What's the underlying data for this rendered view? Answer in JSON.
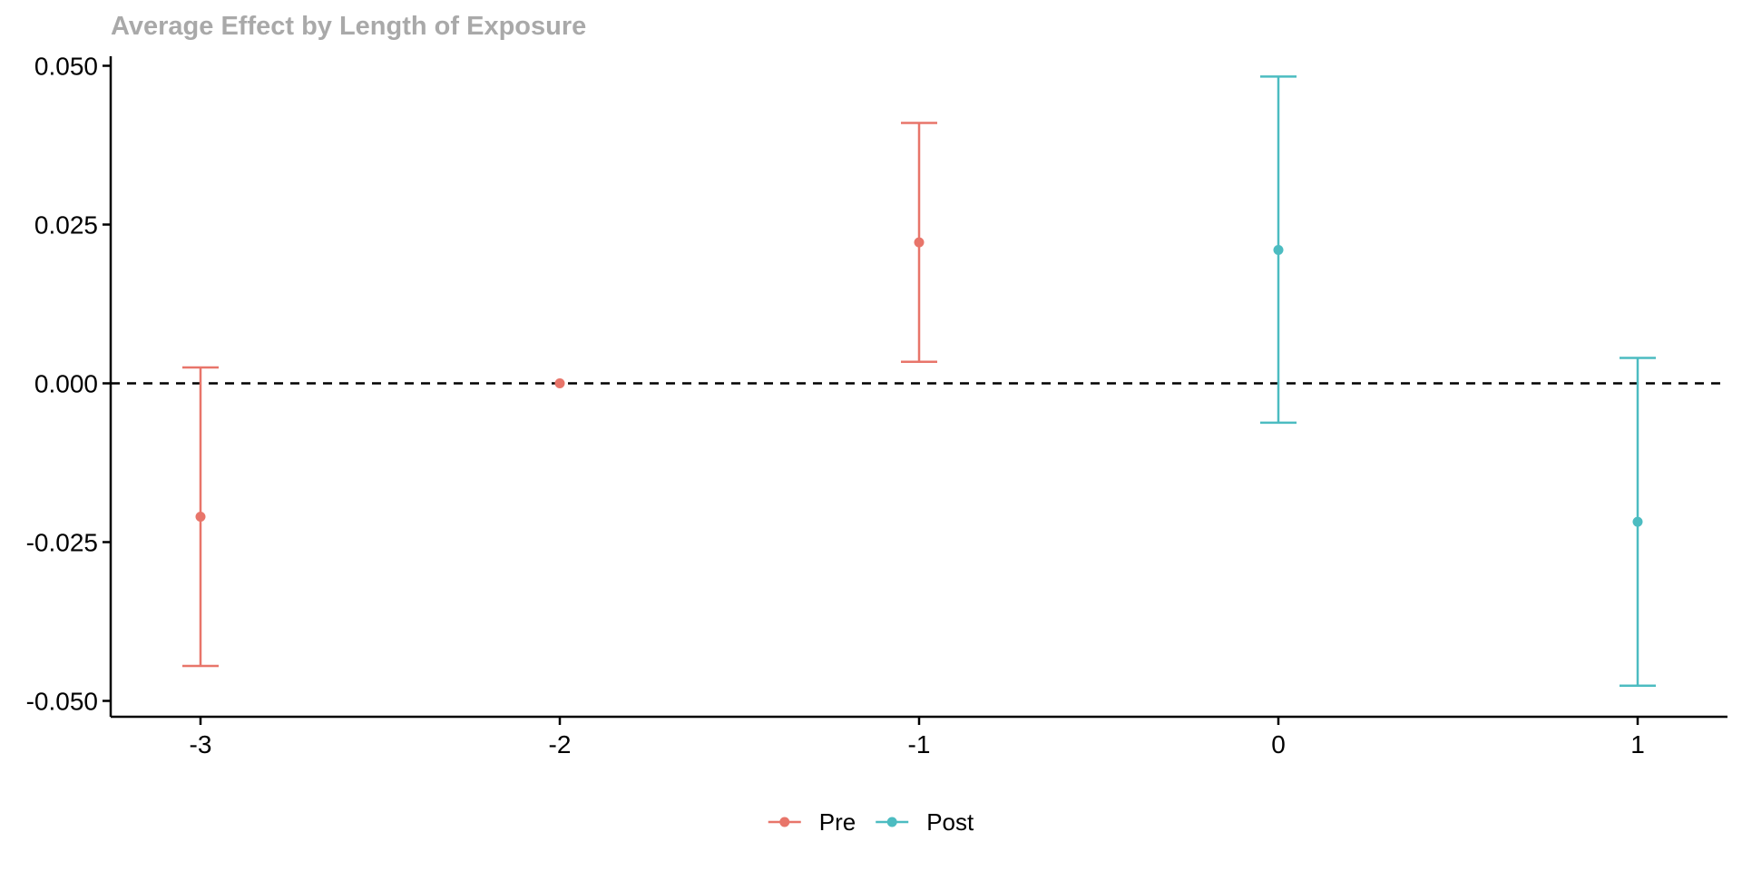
{
  "chart_data": {
    "type": "scatter",
    "title": "Average Effect by Length of Exposure",
    "xlabel": "",
    "ylabel": "",
    "x_ticks": [
      "-3",
      "-2",
      "-1",
      "0",
      "1"
    ],
    "y_ticks": [
      "-0.050",
      "-0.025",
      "0.000",
      "0.025",
      "0.050"
    ],
    "xlim": [
      -3.25,
      1.25
    ],
    "ylim": [
      -0.0525,
      0.0515
    ],
    "reference_line": {
      "y": 0,
      "style": "dashed"
    },
    "grid": false,
    "legend_position": "bottom",
    "series": [
      {
        "name": "Pre",
        "color": "#e8756a",
        "points": [
          {
            "x": -3,
            "y": -0.021,
            "lower": -0.0445,
            "upper": 0.0025
          },
          {
            "x": -2,
            "y": 0.0,
            "lower": 0.0,
            "upper": 0.0
          },
          {
            "x": -1,
            "y": 0.0222,
            "lower": 0.0034,
            "upper": 0.041
          }
        ]
      },
      {
        "name": "Post",
        "color": "#4cbcc1",
        "points": [
          {
            "x": 0,
            "y": 0.021,
            "lower": -0.0062,
            "upper": 0.0483
          },
          {
            "x": 1,
            "y": -0.0218,
            "lower": -0.0476,
            "upper": 0.004
          }
        ]
      }
    ]
  }
}
